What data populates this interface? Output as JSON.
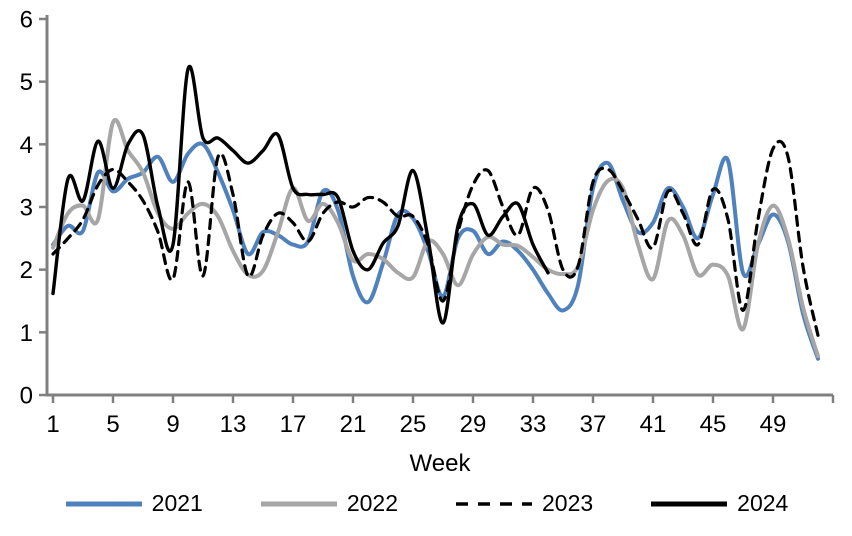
{
  "chart_data": {
    "type": "line",
    "title": "",
    "xlabel": "Week",
    "ylabel": "",
    "xlim": [
      1,
      53
    ],
    "ylim": [
      0,
      6
    ],
    "y_ticks": [
      0,
      1,
      2,
      3,
      4,
      5,
      6
    ],
    "x_ticks": [
      1,
      5,
      9,
      13,
      17,
      21,
      25,
      29,
      33,
      37,
      41,
      45,
      49
    ],
    "grid": "off",
    "legend_position": "bottom",
    "axis_color": "#808080",
    "text_color": "#000000",
    "x_weeks": [
      1,
      2,
      3,
      4,
      5,
      6,
      7,
      8,
      9,
      10,
      11,
      12,
      13,
      14,
      15,
      16,
      17,
      18,
      19,
      20,
      21,
      22,
      23,
      24,
      25,
      26,
      27,
      28,
      29,
      30,
      31,
      32,
      33,
      34,
      35,
      36,
      37,
      38,
      39,
      40,
      41,
      42,
      43,
      44,
      45,
      46,
      47,
      48,
      49,
      50,
      51,
      52
    ],
    "series": [
      {
        "name": "2021",
        "color": "#4f81bd",
        "style": "solid",
        "start_week": 1,
        "values": [
          2.4,
          2.7,
          2.62,
          3.55,
          3.25,
          3.45,
          3.55,
          3.8,
          3.4,
          3.85,
          4.0,
          3.55,
          2.95,
          2.25,
          2.6,
          2.55,
          2.4,
          2.45,
          3.25,
          2.95,
          1.9,
          1.48,
          2.1,
          2.88,
          2.82,
          2.3,
          1.57,
          2.5,
          2.62,
          2.25,
          2.45,
          2.3,
          2.0,
          1.62,
          1.35,
          1.75,
          3.3,
          3.7,
          3.1,
          2.6,
          2.75,
          3.3,
          3.0,
          2.5,
          3.2,
          3.74,
          1.95,
          2.4,
          2.88,
          2.45,
          1.3,
          0.58
        ]
      },
      {
        "name": "2022",
        "color": "#a6a6a6",
        "style": "solid",
        "start_week": 1,
        "values": [
          2.35,
          2.9,
          3.02,
          2.8,
          4.35,
          3.9,
          3.55,
          2.9,
          2.65,
          2.9,
          3.05,
          2.85,
          2.3,
          1.92,
          1.98,
          2.6,
          3.3,
          2.78,
          3.05,
          2.75,
          2.15,
          2.25,
          2.17,
          1.95,
          1.88,
          2.45,
          2.25,
          1.75,
          2.24,
          2.52,
          2.4,
          2.38,
          2.2,
          2.0,
          1.93,
          2.05,
          2.95,
          3.42,
          3.3,
          2.4,
          1.85,
          2.78,
          2.55,
          1.92,
          2.08,
          1.9,
          1.05,
          2.4,
          3.02,
          2.5,
          1.4,
          0.62
        ]
      },
      {
        "name": "2023",
        "color": "#000000",
        "style": "dashed",
        "start_week": 1,
        "values": [
          2.25,
          2.5,
          2.8,
          3.35,
          3.6,
          3.4,
          3.1,
          2.6,
          1.85,
          3.4,
          1.9,
          3.8,
          3.2,
          1.9,
          2.55,
          2.9,
          2.75,
          2.45,
          2.9,
          3.08,
          3.0,
          3.15,
          3.08,
          2.85,
          2.85,
          2.4,
          1.5,
          2.6,
          3.35,
          3.58,
          3.0,
          2.55,
          3.3,
          2.95,
          2.0,
          2.05,
          3.4,
          3.6,
          3.25,
          2.8,
          2.35,
          3.25,
          2.9,
          2.4,
          3.28,
          2.8,
          1.35,
          2.8,
          3.93,
          3.8,
          2.05,
          0.95
        ]
      },
      {
        "name": "2024",
        "color": "#000000",
        "style": "solid",
        "start_week": 1,
        "values": [
          1.62,
          3.45,
          3.1,
          4.05,
          3.3,
          4.0,
          4.15,
          3.0,
          2.4,
          5.2,
          4.1,
          4.1,
          3.9,
          3.7,
          3.9,
          4.15,
          3.3,
          3.2,
          3.2,
          3.15,
          2.3,
          2.0,
          2.42,
          2.7,
          3.58,
          2.5,
          1.15,
          2.7,
          3.05,
          2.55,
          2.85,
          3.05,
          2.4,
          1.95
        ]
      }
    ]
  }
}
